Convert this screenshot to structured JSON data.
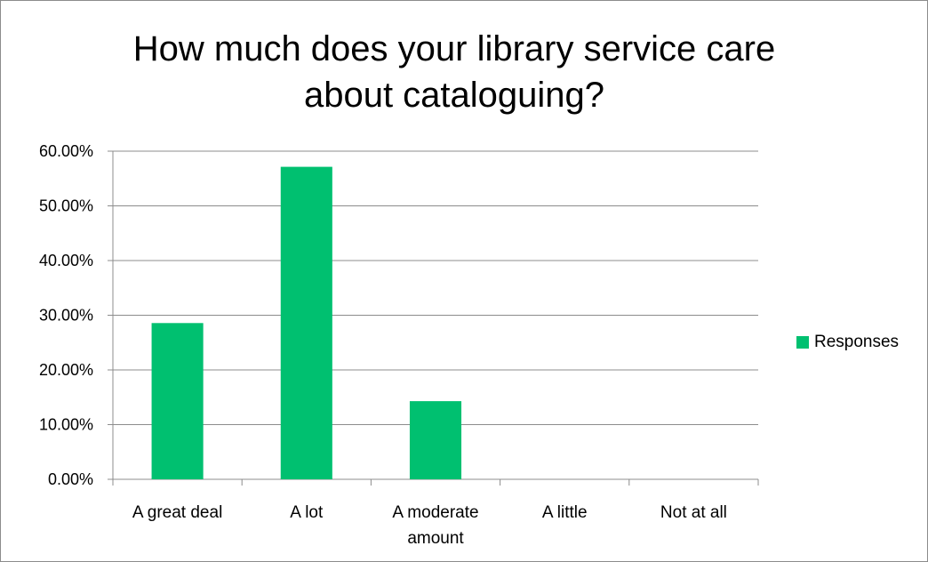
{
  "chart_data": {
    "type": "bar",
    "title": "How much does your library service care about cataloguing?",
    "categories": [
      "A great deal",
      "A lot",
      "A moderate amount",
      "A little",
      "Not at all"
    ],
    "category_lines": [
      [
        "A great deal"
      ],
      [
        "A lot"
      ],
      [
        "A moderate",
        "amount"
      ],
      [
        "A little"
      ],
      [
        "Not at all"
      ]
    ],
    "series": [
      {
        "name": "Responses",
        "values": [
          0.2857,
          0.5714,
          0.1429,
          0,
          0
        ],
        "color": "#00c070"
      }
    ],
    "yticks": [
      "0.00%",
      "10.00%",
      "20.00%",
      "30.00%",
      "40.00%",
      "50.00%",
      "60.00%"
    ],
    "ylim": [
      0,
      0.6
    ],
    "grid": true,
    "legend_position": "right"
  }
}
